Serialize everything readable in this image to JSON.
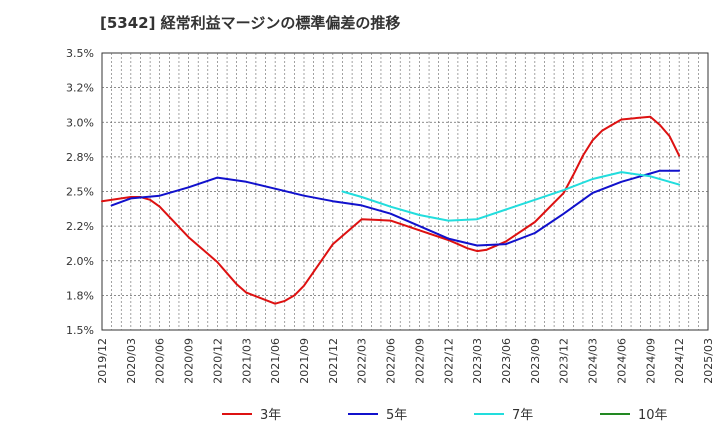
{
  "chart_data": {
    "type": "line",
    "title": "[5342]  経常利益マージンの標準偏差の推移",
    "xlabel": "",
    "ylabel": "",
    "ylim": [
      1.5,
      3.5
    ],
    "y_ticks": [
      "3.5%",
      "3.2%",
      "3.0%",
      "2.8%",
      "2.5%",
      "2.2%",
      "2.0%",
      "1.8%",
      "1.5%"
    ],
    "x_ticks": [
      "2019/12",
      "2020/03",
      "2020/06",
      "2020/09",
      "2020/12",
      "2021/03",
      "2021/06",
      "2021/09",
      "2021/12",
      "2022/03",
      "2022/06",
      "2022/09",
      "2022/12",
      "2023/03",
      "2023/06",
      "2023/09",
      "2023/12",
      "2024/03",
      "2024/06",
      "2024/09",
      "2024/12",
      "2025/03"
    ],
    "grid": true,
    "legend_position": "bottom",
    "series": [
      {
        "name": "3年",
        "color": "#dd1111",
        "points": [
          [
            "2019/12",
            2.43
          ],
          [
            "2020/03",
            2.46
          ],
          [
            "2020/04",
            2.46
          ],
          [
            "2020/05",
            2.44
          ],
          [
            "2020/06",
            2.39
          ],
          [
            "2020/09",
            2.17
          ],
          [
            "2020/12",
            1.99
          ],
          [
            "2021/01",
            1.91
          ],
          [
            "2021/02",
            1.83
          ],
          [
            "2021/03",
            1.77
          ],
          [
            "2021/06",
            1.69
          ],
          [
            "2021/07",
            1.71
          ],
          [
            "2021/08",
            1.75
          ],
          [
            "2021/09",
            1.82
          ],
          [
            "2021/12",
            2.12
          ],
          [
            "2022/03",
            2.3
          ],
          [
            "2022/06",
            2.29
          ],
          [
            "2022/09",
            2.22
          ],
          [
            "2022/12",
            2.15
          ],
          [
            "2023/01",
            2.12
          ],
          [
            "2023/02",
            2.09
          ],
          [
            "2023/03",
            2.07
          ],
          [
            "2023/04",
            2.08
          ],
          [
            "2023/06",
            2.14
          ],
          [
            "2023/09",
            2.28
          ],
          [
            "2023/12",
            2.49
          ],
          [
            "2024/01",
            2.62
          ],
          [
            "2024/02",
            2.76
          ],
          [
            "2024/03",
            2.87
          ],
          [
            "2024/04",
            2.94
          ],
          [
            "2024/05",
            2.98
          ],
          [
            "2024/06",
            3.02
          ],
          [
            "2024/09",
            3.04
          ],
          [
            "2024/10",
            2.98
          ],
          [
            "2024/11",
            2.9
          ],
          [
            "2024/12",
            2.76
          ]
        ]
      },
      {
        "name": "5年",
        "color": "#1111cc",
        "points": [
          [
            "2020/01",
            2.4
          ],
          [
            "2020/03",
            2.45
          ],
          [
            "2020/06",
            2.47
          ],
          [
            "2020/09",
            2.53
          ],
          [
            "2020/12",
            2.6
          ],
          [
            "2021/03",
            2.57
          ],
          [
            "2021/06",
            2.52
          ],
          [
            "2021/09",
            2.47
          ],
          [
            "2021/12",
            2.43
          ],
          [
            "2022/03",
            2.4
          ],
          [
            "2022/06",
            2.34
          ],
          [
            "2022/09",
            2.25
          ],
          [
            "2022/12",
            2.16
          ],
          [
            "2023/03",
            2.11
          ],
          [
            "2023/06",
            2.12
          ],
          [
            "2023/09",
            2.2
          ],
          [
            "2023/12",
            2.34
          ],
          [
            "2024/03",
            2.49
          ],
          [
            "2024/06",
            2.57
          ],
          [
            "2024/09",
            2.63
          ],
          [
            "2024/10",
            2.65
          ],
          [
            "2024/12",
            2.65
          ]
        ]
      },
      {
        "name": "7年",
        "color": "#22dddd",
        "points": [
          [
            "2022/01",
            2.5
          ],
          [
            "2022/03",
            2.46
          ],
          [
            "2022/06",
            2.39
          ],
          [
            "2022/09",
            2.33
          ],
          [
            "2022/12",
            2.29
          ],
          [
            "2023/03",
            2.3
          ],
          [
            "2023/06",
            2.37
          ],
          [
            "2023/09",
            2.44
          ],
          [
            "2023/12",
            2.51
          ],
          [
            "2024/03",
            2.59
          ],
          [
            "2024/06",
            2.64
          ],
          [
            "2024/09",
            2.61
          ],
          [
            "2024/12",
            2.55
          ]
        ]
      },
      {
        "name": "10年",
        "color": "#228822",
        "points": []
      }
    ]
  }
}
